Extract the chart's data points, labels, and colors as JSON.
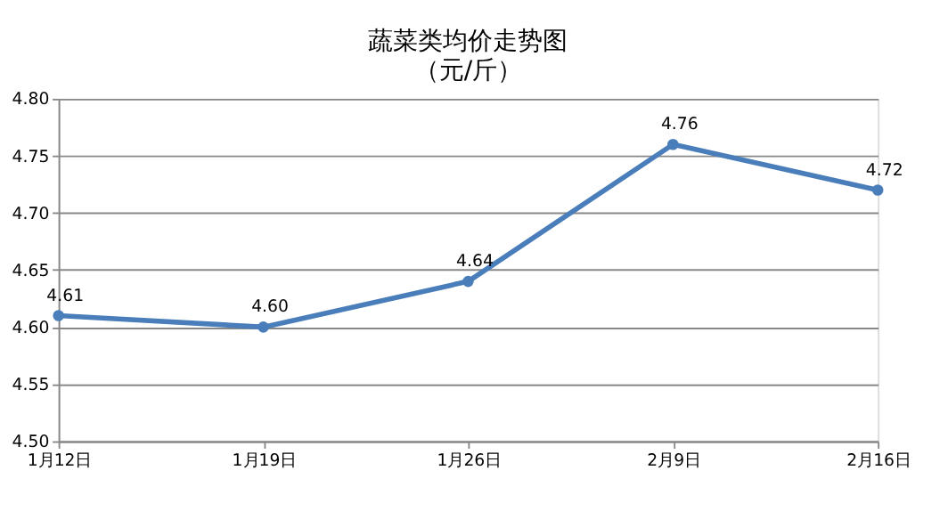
{
  "chart_data": {
    "type": "line",
    "title": "蔬菜类均价走势图",
    "subtitle": "（元/斤）",
    "categories": [
      "1月12日",
      "1月19日",
      "1月26日",
      "2月9日",
      "2月16日"
    ],
    "series": [
      {
        "color": "#4a7ebb",
        "values": [
          4.61,
          4.6,
          4.64,
          4.76,
          4.72
        ],
        "value_labels": [
          "4.61",
          "4.60",
          "4.64",
          "4.76",
          "4.72"
        ]
      }
    ],
    "ylim": [
      4.5,
      4.8
    ],
    "yticks": [
      {
        "value": 4.5,
        "label": "4.50"
      },
      {
        "value": 4.55,
        "label": "4.55"
      },
      {
        "value": 4.6,
        "label": "4.60"
      },
      {
        "value": 4.65,
        "label": "4.65"
      },
      {
        "value": 4.7,
        "label": "4.70"
      },
      {
        "value": 4.75,
        "label": "4.75"
      },
      {
        "value": 4.8,
        "label": "4.80"
      }
    ],
    "grid": "y",
    "marker": "circle",
    "line_style": "solid"
  }
}
